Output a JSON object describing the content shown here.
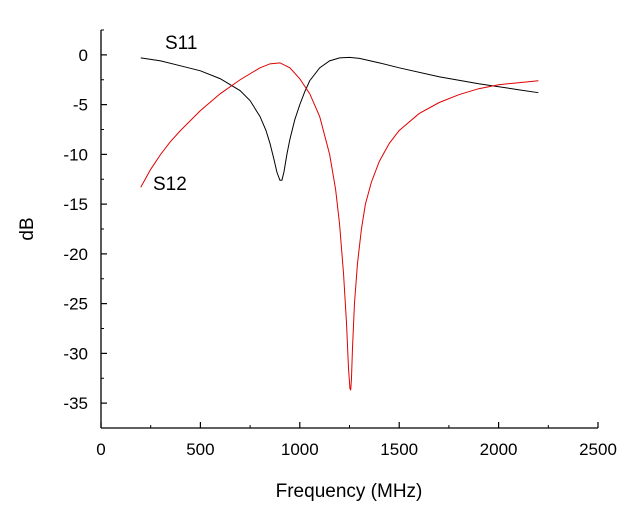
{
  "chart_data": {
    "type": "line",
    "title": "",
    "xlabel": "Frequency (MHz)",
    "ylabel": "dB",
    "xlim": [
      0,
      2500
    ],
    "ylim": [
      -37.5,
      2.5
    ],
    "xticks": [
      0,
      500,
      1000,
      1500,
      2000,
      2500
    ],
    "xtick_labels": [
      "0",
      "500",
      "1000",
      "1500",
      "2000",
      "2500"
    ],
    "yticks": [
      0,
      -5,
      -10,
      -15,
      -20,
      -25,
      -30,
      -35
    ],
    "ytick_labels": [
      "0",
      "-5",
      "-10",
      "-15",
      "-20",
      "-25",
      "-30",
      "-35"
    ],
    "grid": false,
    "series": [
      {
        "name": "S11",
        "label": "S11",
        "color": "#000000",
        "x": [
          200,
          300,
          400,
          500,
          600,
          700,
          750,
          800,
          830,
          850,
          870,
          885,
          900,
          910,
          920,
          935,
          950,
          975,
          1000,
          1025,
          1050,
          1100,
          1150,
          1200,
          1250,
          1300,
          1400,
          1500,
          1700,
          1900,
          2100,
          2200
        ],
        "y": [
          -0.3,
          -0.6,
          -1.1,
          -1.6,
          -2.4,
          -3.6,
          -4.6,
          -6.2,
          -7.6,
          -8.9,
          -10.5,
          -11.8,
          -12.6,
          -12.6,
          -11.8,
          -10.0,
          -8.5,
          -6.5,
          -5.0,
          -3.7,
          -2.6,
          -1.3,
          -0.6,
          -0.3,
          -0.25,
          -0.35,
          -0.8,
          -1.3,
          -2.2,
          -2.9,
          -3.5,
          -3.8
        ]
      },
      {
        "name": "S12",
        "label": "S12",
        "color": "#e00000",
        "x": [
          200,
          250,
          300,
          350,
          400,
          500,
          600,
          700,
          800,
          850,
          900,
          950,
          1000,
          1050,
          1100,
          1150,
          1180,
          1200,
          1220,
          1235,
          1245,
          1252,
          1256,
          1260,
          1265,
          1275,
          1290,
          1310,
          1330,
          1360,
          1400,
          1450,
          1500,
          1600,
          1700,
          1800,
          1900,
          2000,
          2100,
          2200
        ],
        "y": [
          -13.3,
          -11.5,
          -10.0,
          -8.7,
          -7.6,
          -5.6,
          -3.9,
          -2.5,
          -1.3,
          -0.9,
          -0.8,
          -1.3,
          -2.4,
          -3.9,
          -6.2,
          -10.0,
          -13.5,
          -17.0,
          -22.0,
          -27.0,
          -31.5,
          -33.5,
          -33.7,
          -32.5,
          -29.5,
          -25.0,
          -21.0,
          -17.5,
          -15.0,
          -12.8,
          -10.7,
          -8.9,
          -7.6,
          -5.9,
          -4.8,
          -4.0,
          -3.4,
          -3.0,
          -2.8,
          -2.6
        ]
      }
    ]
  }
}
